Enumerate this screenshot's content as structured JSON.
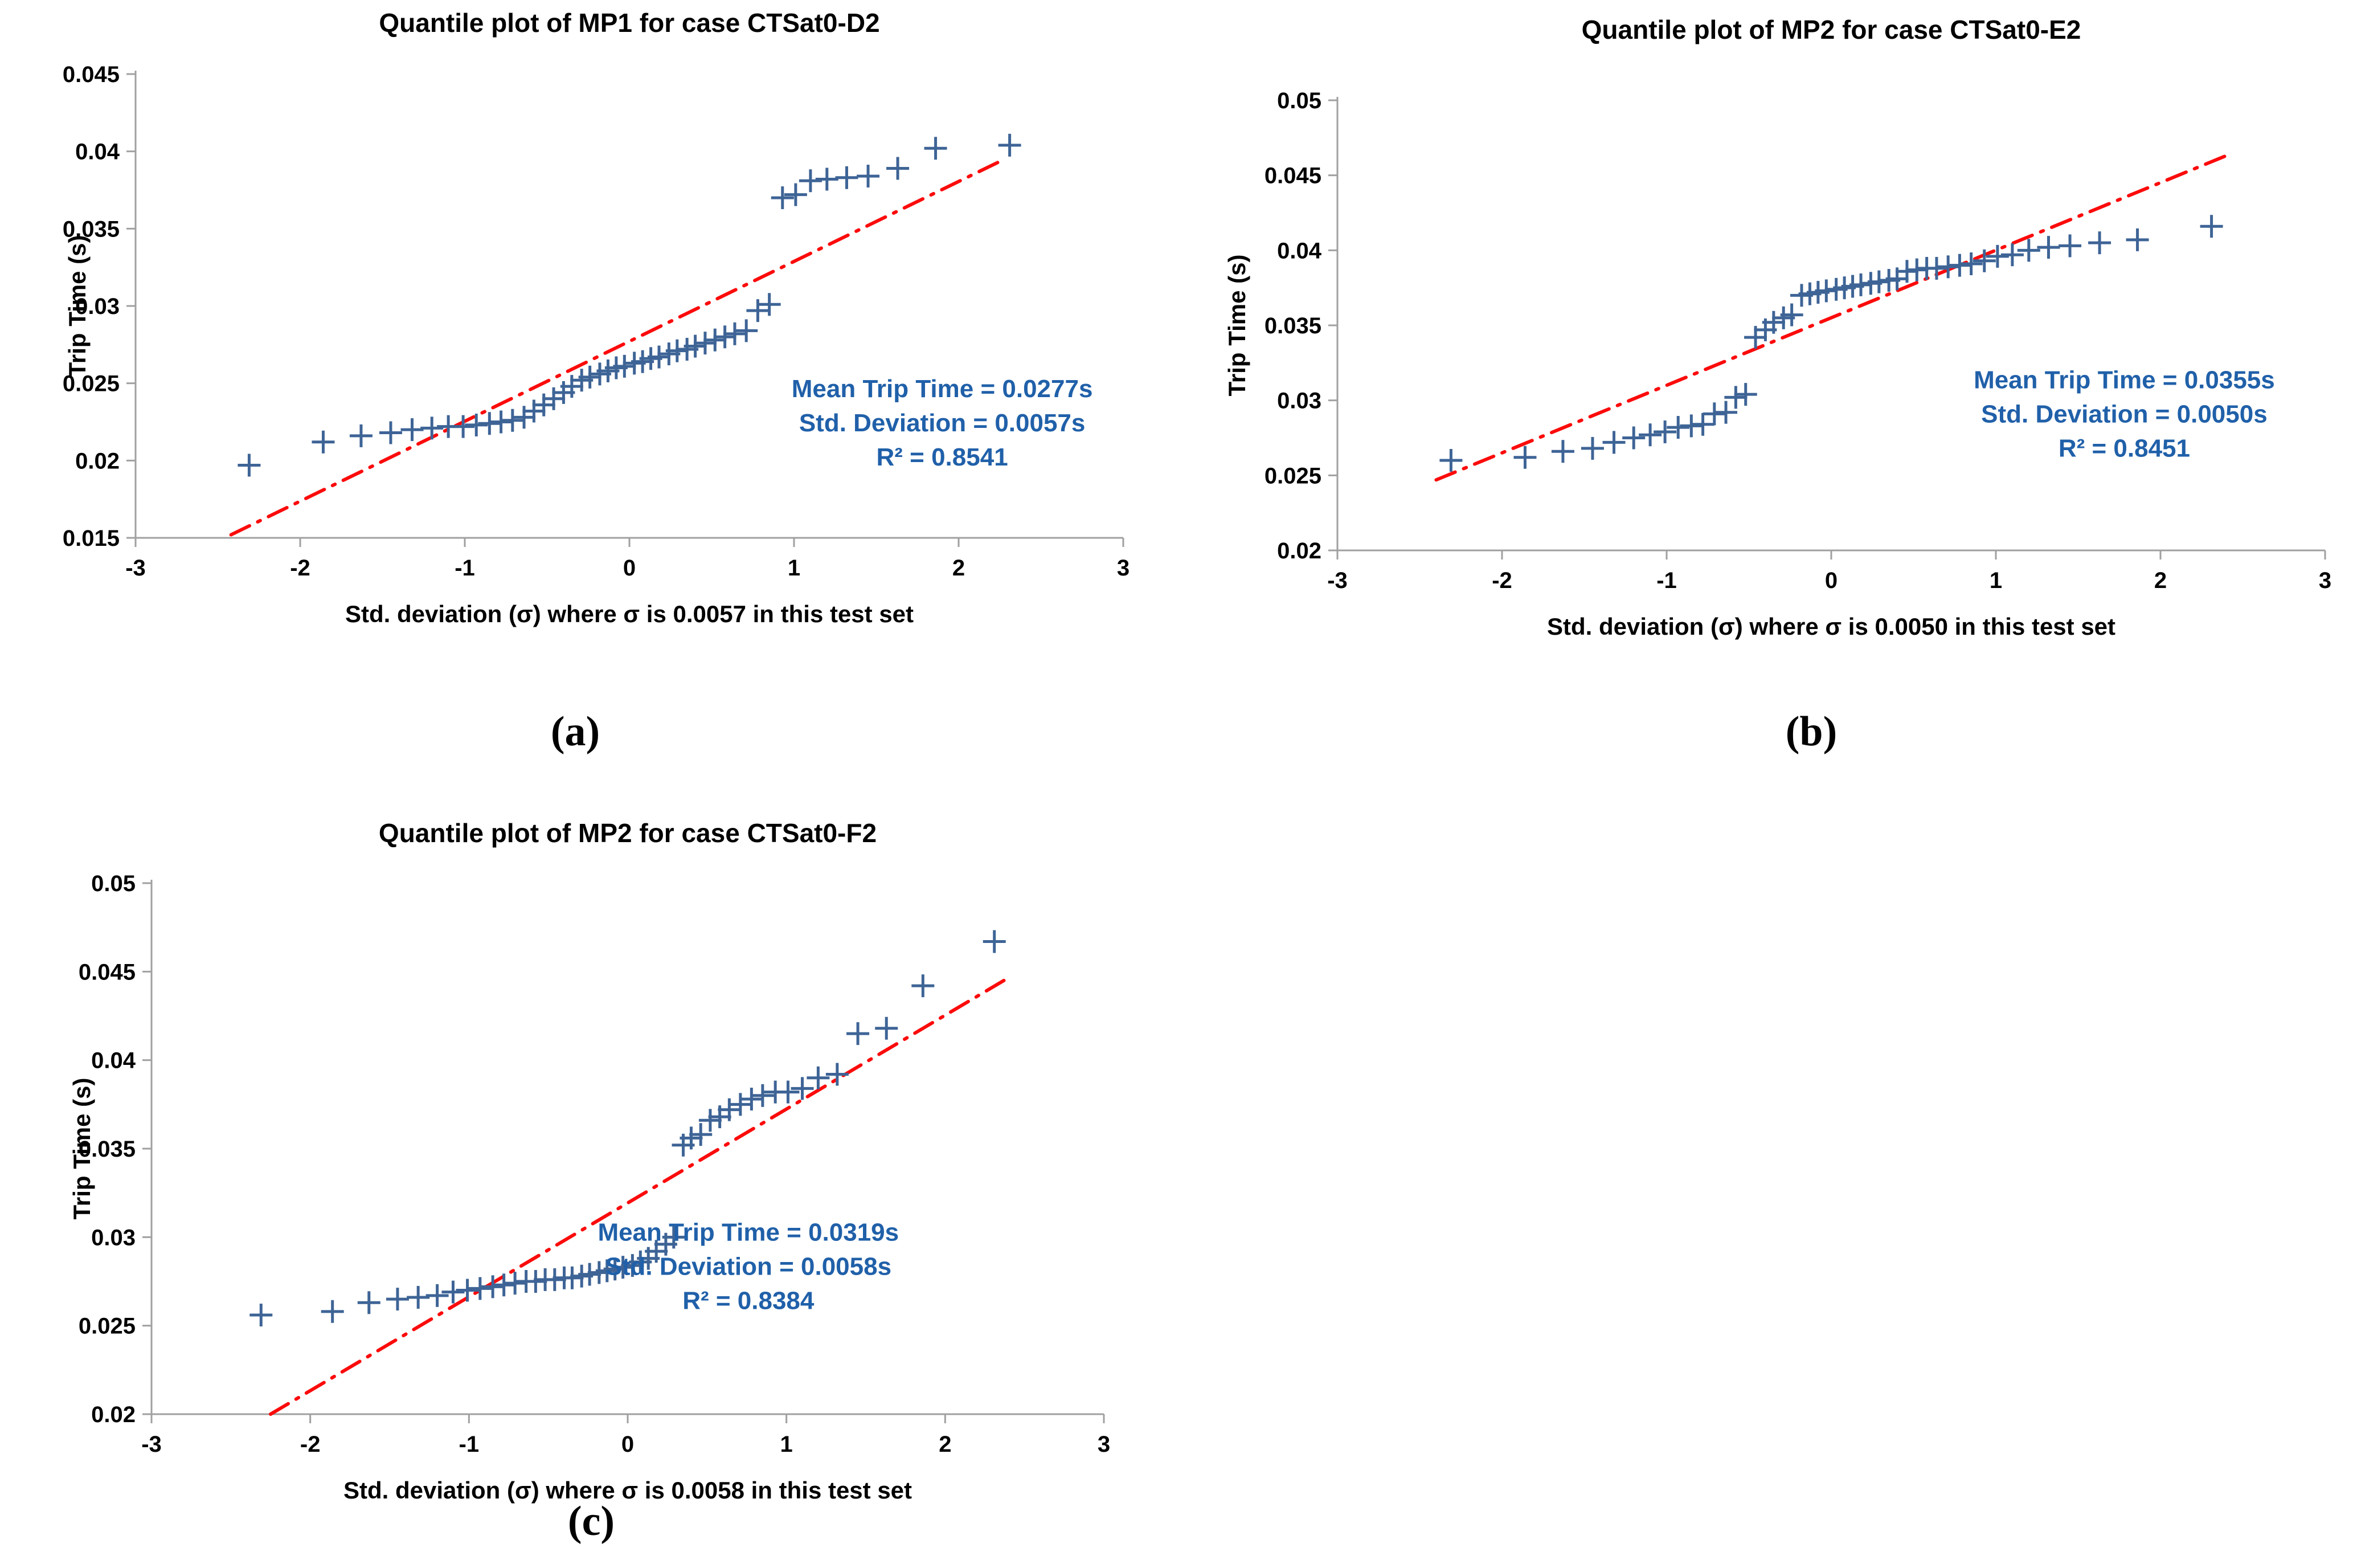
{
  "figure": {
    "background": "#FFFFFF",
    "captions": {
      "a": "(a)",
      "b": "(b)",
      "c": "(c)"
    }
  },
  "style": {
    "marker_color": "#3E6496",
    "trend_color": "#FB0B0B",
    "annotation_color": "#2060A9",
    "axis_color": "#A0A0A0",
    "text_color": "#000000"
  },
  "chart_data": [
    {
      "id": "a",
      "type": "scatter",
      "title": "Quantile plot of MP1 for case CTSat0-D2",
      "xlabel": "Std. deviation (σ) where σ is 0.0057 in this test set",
      "ylabel": "Trip Time (s)",
      "xlim": [
        -3,
        3
      ],
      "ylim": [
        0.015,
        0.045
      ],
      "xticks": [
        -3,
        -2,
        -1,
        0,
        1,
        2,
        3
      ],
      "yticks": [
        0.015,
        0.02,
        0.025,
        0.03,
        0.035,
        0.04,
        0.045
      ],
      "grid": false,
      "legend": null,
      "marker": "plus",
      "points": [
        [
          -2.31,
          0.0197
        ],
        [
          -1.86,
          0.0212
        ],
        [
          -1.63,
          0.0216
        ],
        [
          -1.45,
          0.0218
        ],
        [
          -1.32,
          0.022
        ],
        [
          -1.2,
          0.0221
        ],
        [
          -1.1,
          0.0222
        ],
        [
          -1.01,
          0.0222
        ],
        [
          -0.93,
          0.0223
        ],
        [
          -0.85,
          0.0224
        ],
        [
          -0.78,
          0.0225
        ],
        [
          -0.71,
          0.0226
        ],
        [
          -0.64,
          0.0228
        ],
        [
          -0.58,
          0.0232
        ],
        [
          -0.52,
          0.0236
        ],
        [
          -0.46,
          0.024
        ],
        [
          -0.4,
          0.0244
        ],
        [
          -0.35,
          0.0248
        ],
        [
          -0.29,
          0.0252
        ],
        [
          -0.24,
          0.0254
        ],
        [
          -0.18,
          0.0256
        ],
        [
          -0.13,
          0.0258
        ],
        [
          -0.08,
          0.026
        ],
        [
          -0.03,
          0.0261
        ],
        [
          0.03,
          0.0263
        ],
        [
          0.08,
          0.0264
        ],
        [
          0.13,
          0.0266
        ],
        [
          0.18,
          0.0267
        ],
        [
          0.24,
          0.0269
        ],
        [
          0.29,
          0.0271
        ],
        [
          0.35,
          0.0272
        ],
        [
          0.4,
          0.0274
        ],
        [
          0.46,
          0.0276
        ],
        [
          0.52,
          0.0278
        ],
        [
          0.58,
          0.028
        ],
        [
          0.64,
          0.0282
        ],
        [
          0.71,
          0.0284
        ],
        [
          0.78,
          0.0297
        ],
        [
          0.85,
          0.0301
        ],
        [
          0.93,
          0.037
        ],
        [
          1.01,
          0.0372
        ],
        [
          1.1,
          0.0381
        ],
        [
          1.2,
          0.0382
        ],
        [
          1.32,
          0.0383
        ],
        [
          1.45,
          0.0384
        ],
        [
          1.63,
          0.0389
        ],
        [
          1.86,
          0.0402
        ],
        [
          2.31,
          0.0404
        ]
      ],
      "trend_line": {
        "style": "dash-dot",
        "from": [
          -2.42,
          0.0152
        ],
        "to": [
          2.28,
          0.0395
        ]
      },
      "annotation": {
        "lines": [
          "Mean Trip Time = 0.0277s",
          "Std. Deviation = 0.0057s",
          "R² = 0.8541"
        ],
        "anchor": [
          1.9,
          0.0241
        ]
      }
    },
    {
      "id": "b",
      "type": "scatter",
      "title": "Quantile plot of MP2 for case CTSat0-E2",
      "xlabel": "Std. deviation (σ) where σ is 0.0050 in this test set",
      "ylabel": "Trip Time (s)",
      "xlim": [
        -3,
        3
      ],
      "ylim": [
        0.02,
        0.05
      ],
      "xticks": [
        -3,
        -2,
        -1,
        0,
        1,
        2,
        3
      ],
      "yticks": [
        0.02,
        0.025,
        0.03,
        0.035,
        0.04,
        0.045,
        0.05
      ],
      "grid": false,
      "legend": null,
      "marker": "plus",
      "points": [
        [
          -2.31,
          0.026
        ],
        [
          -1.86,
          0.0262
        ],
        [
          -1.63,
          0.0266
        ],
        [
          -1.45,
          0.0268
        ],
        [
          -1.32,
          0.0272
        ],
        [
          -1.2,
          0.0275
        ],
        [
          -1.1,
          0.0277
        ],
        [
          -1.01,
          0.0279
        ],
        [
          -0.93,
          0.0282
        ],
        [
          -0.85,
          0.0283
        ],
        [
          -0.78,
          0.0284
        ],
        [
          -0.71,
          0.0291
        ],
        [
          -0.64,
          0.0292
        ],
        [
          -0.58,
          0.0302
        ],
        [
          -0.52,
          0.0304
        ],
        [
          -0.46,
          0.0342
        ],
        [
          -0.4,
          0.0347
        ],
        [
          -0.35,
          0.0352
        ],
        [
          -0.29,
          0.0355
        ],
        [
          -0.24,
          0.0357
        ],
        [
          -0.18,
          0.037
        ],
        [
          -0.13,
          0.0371
        ],
        [
          -0.08,
          0.0372
        ],
        [
          -0.03,
          0.0373
        ],
        [
          0.03,
          0.0374
        ],
        [
          0.08,
          0.0375
        ],
        [
          0.13,
          0.0376
        ],
        [
          0.18,
          0.0377
        ],
        [
          0.24,
          0.0378
        ],
        [
          0.29,
          0.0379
        ],
        [
          0.35,
          0.038
        ],
        [
          0.4,
          0.0381
        ],
        [
          0.46,
          0.0386
        ],
        [
          0.52,
          0.0387
        ],
        [
          0.58,
          0.0388
        ],
        [
          0.64,
          0.0388
        ],
        [
          0.71,
          0.0389
        ],
        [
          0.78,
          0.039
        ],
        [
          0.85,
          0.0391
        ],
        [
          0.93,
          0.0393
        ],
        [
          1.01,
          0.0396
        ],
        [
          1.1,
          0.0397
        ],
        [
          1.2,
          0.04
        ],
        [
          1.32,
          0.0402
        ],
        [
          1.45,
          0.0403
        ],
        [
          1.63,
          0.0405
        ],
        [
          1.86,
          0.0407
        ],
        [
          2.31,
          0.0416
        ]
      ],
      "trend_line": {
        "style": "dash-dot",
        "from": [
          -2.4,
          0.0247
        ],
        "to": [
          2.42,
          0.0464
        ]
      },
      "annotation": {
        "lines": [
          "Mean Trip Time = 0.0355s",
          "Std. Deviation = 0.0050s",
          "R² = 0.8451"
        ],
        "anchor": [
          1.78,
          0.0308
        ]
      }
    },
    {
      "id": "c",
      "type": "scatter",
      "title": "Quantile plot of MP2 for case CTSat0-F2",
      "xlabel": "Std. deviation (σ) where σ is 0.0058 in this test set",
      "ylabel": "Trip Time (s)",
      "xlim": [
        -3,
        3
      ],
      "ylim": [
        0.02,
        0.05
      ],
      "xticks": [
        -3,
        -2,
        -1,
        0,
        1,
        2,
        3
      ],
      "yticks": [
        0.02,
        0.025,
        0.03,
        0.035,
        0.04,
        0.045,
        0.05
      ],
      "grid": false,
      "legend": null,
      "marker": "plus",
      "points": [
        [
          -2.31,
          0.0256
        ],
        [
          -1.86,
          0.0258
        ],
        [
          -1.63,
          0.0263
        ],
        [
          -1.45,
          0.0265
        ],
        [
          -1.32,
          0.0266
        ],
        [
          -1.2,
          0.0267
        ],
        [
          -1.1,
          0.0269
        ],
        [
          -1.01,
          0.027
        ],
        [
          -0.93,
          0.0271
        ],
        [
          -0.85,
          0.0272
        ],
        [
          -0.78,
          0.0273
        ],
        [
          -0.71,
          0.0274
        ],
        [
          -0.64,
          0.0275
        ],
        [
          -0.58,
          0.0275
        ],
        [
          -0.52,
          0.0276
        ],
        [
          -0.46,
          0.0276
        ],
        [
          -0.4,
          0.0277
        ],
        [
          -0.35,
          0.0277
        ],
        [
          -0.29,
          0.0278
        ],
        [
          -0.24,
          0.0279
        ],
        [
          -0.18,
          0.028
        ],
        [
          -0.13,
          0.0281
        ],
        [
          -0.08,
          0.0282
        ],
        [
          -0.03,
          0.0283
        ],
        [
          0.03,
          0.0284
        ],
        [
          0.08,
          0.0286
        ],
        [
          0.13,
          0.0288
        ],
        [
          0.18,
          0.0292
        ],
        [
          0.24,
          0.0296
        ],
        [
          0.29,
          0.03
        ],
        [
          0.35,
          0.0352
        ],
        [
          0.4,
          0.0356
        ],
        [
          0.46,
          0.0358
        ],
        [
          0.52,
          0.0366
        ],
        [
          0.58,
          0.0368
        ],
        [
          0.64,
          0.0372
        ],
        [
          0.71,
          0.0375
        ],
        [
          0.78,
          0.0378
        ],
        [
          0.85,
          0.038
        ],
        [
          0.93,
          0.0382
        ],
        [
          1.01,
          0.0382
        ],
        [
          1.1,
          0.0384
        ],
        [
          1.2,
          0.039
        ],
        [
          1.32,
          0.0392
        ],
        [
          1.45,
          0.0415
        ],
        [
          1.63,
          0.0418
        ],
        [
          1.86,
          0.0442
        ],
        [
          2.31,
          0.0467
        ]
      ],
      "trend_line": {
        "style": "dash-dot",
        "from": [
          -2.25,
          0.02
        ],
        "to": [
          2.37,
          0.0445
        ]
      },
      "annotation": {
        "lines": [
          "Mean Trip Time = 0.0319s",
          "Std. Deviation = 0.0058s",
          "R² = 0.8384"
        ],
        "anchor": [
          0.76,
          0.0298
        ]
      }
    }
  ]
}
